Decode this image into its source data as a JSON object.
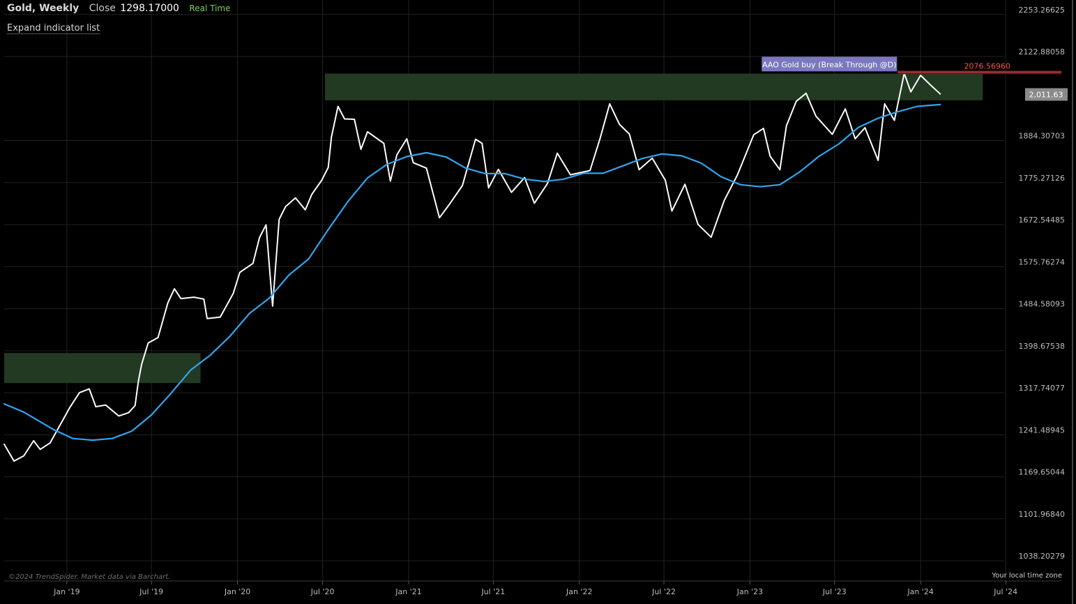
{
  "header": {
    "symbol": "Gold, Weekly",
    "close_label": "Close",
    "close_value": "1298.17000",
    "realtime_label": "Real Time"
  },
  "expand_label": "Expand indicator list",
  "copyright": "©2024 TrendSpider. Market data via Barchart.",
  "timezone_label": "Your local time zone",
  "colors": {
    "background": "#000000",
    "price_line": "#ffffff",
    "ma_line": "#2fa6f0",
    "zone_fill": "#233a22",
    "alert_label_bg": "#7b78c0",
    "alert_line": "#c43a3a",
    "alert_text": "#ff4d4d",
    "last_price_bg": "#8a8a8a",
    "grid": "#222222",
    "axis_text": "#bdbdbd"
  },
  "chart_data": {
    "type": "line",
    "title": "Gold, Weekly",
    "x_tick_labels": [
      "Jan '19",
      "Jul '19",
      "Jan '20",
      "Jul '20",
      "Jan '21",
      "Jul '21",
      "Jan '22",
      "Jul '22",
      "Jan '23",
      "Jul '23",
      "Jan '24",
      "Jul '24"
    ],
    "x_ticks": [
      "2019-01-01",
      "2019-07-01",
      "2020-01-01",
      "2020-07-01",
      "2021-01-01",
      "2021-07-01",
      "2022-01-01",
      "2022-07-01",
      "2023-01-01",
      "2023-07-01",
      "2024-01-01",
      "2024-07-01"
    ],
    "x_range": [
      "2018-08-20",
      "2024-10-28"
    ],
    "y_tick_labels": [
      "2253.26625",
      "2122.88058",
      "1884.30703",
      "1775.27126",
      "1672.54485",
      "1575.76274",
      "1484.58093",
      "1398.67538",
      "1317.74077",
      "1241.48945",
      "1169.65044",
      "1101.96840",
      "1038.20279"
    ],
    "y_scale": "log",
    "y_range": [
      1010,
      2300
    ],
    "grid": true,
    "series": [
      {
        "kind": "price",
        "values": [
          [
            "2018-08-20",
            1225
          ],
          [
            "2018-09-10",
            1196
          ],
          [
            "2018-10-01",
            1205
          ],
          [
            "2018-10-22",
            1231
          ],
          [
            "2018-11-05",
            1216
          ],
          [
            "2018-11-26",
            1227
          ],
          [
            "2018-12-17",
            1258
          ],
          [
            "2019-01-07",
            1290
          ],
          [
            "2019-01-28",
            1318
          ],
          [
            "2019-02-18",
            1325
          ],
          [
            "2019-03-04",
            1292
          ],
          [
            "2019-03-25",
            1295
          ],
          [
            "2019-04-22",
            1275
          ],
          [
            "2019-05-13",
            1281
          ],
          [
            "2019-05-27",
            1294
          ],
          [
            "2019-06-03",
            1339
          ],
          [
            "2019-06-10",
            1372
          ],
          [
            "2019-06-24",
            1414
          ],
          [
            "2019-07-15",
            1425
          ],
          [
            "2019-08-05",
            1497
          ],
          [
            "2019-08-19",
            1527
          ],
          [
            "2019-09-02",
            1506
          ],
          [
            "2019-09-30",
            1509
          ],
          [
            "2019-10-21",
            1505
          ],
          [
            "2019-10-28",
            1464
          ],
          [
            "2019-11-25",
            1467
          ],
          [
            "2019-12-23",
            1517
          ],
          [
            "2020-01-06",
            1563
          ],
          [
            "2020-02-03",
            1583
          ],
          [
            "2020-02-17",
            1642
          ],
          [
            "2020-03-02",
            1672
          ],
          [
            "2020-03-16",
            1490
          ],
          [
            "2020-03-30",
            1685
          ],
          [
            "2020-04-13",
            1716
          ],
          [
            "2020-05-04",
            1737
          ],
          [
            "2020-05-25",
            1708
          ],
          [
            "2020-06-08",
            1746
          ],
          [
            "2020-06-29",
            1781
          ],
          [
            "2020-07-13",
            1814
          ],
          [
            "2020-07-20",
            1894
          ],
          [
            "2020-08-03",
            1978
          ],
          [
            "2020-08-17",
            1943
          ],
          [
            "2020-09-07",
            1942
          ],
          [
            "2020-09-21",
            1861
          ],
          [
            "2020-10-05",
            1908
          ],
          [
            "2020-11-09",
            1877
          ],
          [
            "2020-11-23",
            1779
          ],
          [
            "2020-12-07",
            1847
          ],
          [
            "2020-12-28",
            1889
          ],
          [
            "2021-01-11",
            1826
          ],
          [
            "2021-02-08",
            1812
          ],
          [
            "2021-03-08",
            1689
          ],
          [
            "2021-03-29",
            1721
          ],
          [
            "2021-04-26",
            1768
          ],
          [
            "2021-05-24",
            1888
          ],
          [
            "2021-06-07",
            1877
          ],
          [
            "2021-06-21",
            1762
          ],
          [
            "2021-07-12",
            1809
          ],
          [
            "2021-08-09",
            1751
          ],
          [
            "2021-09-06",
            1788
          ],
          [
            "2021-09-27",
            1724
          ],
          [
            "2021-10-25",
            1773
          ],
          [
            "2021-11-15",
            1851
          ],
          [
            "2021-12-13",
            1795
          ],
          [
            "2022-01-24",
            1806
          ],
          [
            "2022-02-14",
            1888
          ],
          [
            "2022-03-07",
            1985
          ],
          [
            "2022-03-28",
            1928
          ],
          [
            "2022-04-18",
            1902
          ],
          [
            "2022-05-09",
            1808
          ],
          [
            "2022-06-06",
            1838
          ],
          [
            "2022-07-04",
            1781
          ],
          [
            "2022-07-18",
            1705
          ],
          [
            "2022-08-15",
            1771
          ],
          [
            "2022-09-12",
            1673
          ],
          [
            "2022-10-10",
            1643
          ],
          [
            "2022-11-07",
            1731
          ],
          [
            "2022-12-05",
            1794
          ],
          [
            "2023-01-09",
            1900
          ],
          [
            "2023-01-30",
            1917
          ],
          [
            "2023-02-13",
            1843
          ],
          [
            "2023-03-06",
            1808
          ],
          [
            "2023-03-20",
            1924
          ],
          [
            "2023-04-10",
            1992
          ],
          [
            "2023-05-01",
            2015
          ],
          [
            "2023-05-22",
            1951
          ],
          [
            "2023-06-26",
            1901
          ],
          [
            "2023-07-24",
            1971
          ],
          [
            "2023-08-14",
            1889
          ],
          [
            "2023-09-04",
            1919
          ],
          [
            "2023-10-02",
            1832
          ],
          [
            "2023-10-16",
            1985
          ],
          [
            "2023-11-06",
            1939
          ],
          [
            "2023-11-27",
            2073
          ],
          [
            "2023-12-11",
            2019
          ],
          [
            "2024-01-01",
            2067
          ],
          [
            "2024-01-22",
            2039
          ],
          [
            "2024-02-12",
            2013
          ]
        ]
      },
      {
        "kind": "moving_average",
        "values": [
          [
            "2018-08-20",
            1297
          ],
          [
            "2018-10-01",
            1282
          ],
          [
            "2018-12-03",
            1251
          ],
          [
            "2019-01-14",
            1235
          ],
          [
            "2019-02-25",
            1232
          ],
          [
            "2019-04-08",
            1235
          ],
          [
            "2019-05-20",
            1248
          ],
          [
            "2019-07-01",
            1277
          ],
          [
            "2019-08-12",
            1317
          ],
          [
            "2019-09-23",
            1361
          ],
          [
            "2019-11-04",
            1390
          ],
          [
            "2019-12-16",
            1428
          ],
          [
            "2020-01-27",
            1475
          ],
          [
            "2020-03-09",
            1507
          ],
          [
            "2020-04-20",
            1557
          ],
          [
            "2020-06-01",
            1593
          ],
          [
            "2020-07-13",
            1661
          ],
          [
            "2020-08-24",
            1728
          ],
          [
            "2020-10-05",
            1787
          ],
          [
            "2020-11-16",
            1822
          ],
          [
            "2020-12-28",
            1842
          ],
          [
            "2021-02-08",
            1852
          ],
          [
            "2021-03-22",
            1841
          ],
          [
            "2021-05-03",
            1812
          ],
          [
            "2021-06-14",
            1798
          ],
          [
            "2021-07-26",
            1798
          ],
          [
            "2021-09-06",
            1784
          ],
          [
            "2021-10-18",
            1778
          ],
          [
            "2021-11-29",
            1784
          ],
          [
            "2022-01-10",
            1799
          ],
          [
            "2022-02-21",
            1799
          ],
          [
            "2022-04-04",
            1818
          ],
          [
            "2022-05-16",
            1837
          ],
          [
            "2022-06-27",
            1849
          ],
          [
            "2022-08-08",
            1844
          ],
          [
            "2022-09-19",
            1825
          ],
          [
            "2022-10-31",
            1790
          ],
          [
            "2022-12-12",
            1770
          ],
          [
            "2023-01-23",
            1765
          ],
          [
            "2023-03-06",
            1770
          ],
          [
            "2023-04-17",
            1802
          ],
          [
            "2023-05-29",
            1843
          ],
          [
            "2023-07-10",
            1875
          ],
          [
            "2023-08-21",
            1920
          ],
          [
            "2023-10-02",
            1945
          ],
          [
            "2023-11-13",
            1963
          ],
          [
            "2023-12-25",
            1978
          ],
          [
            "2024-02-12",
            1983
          ]
        ]
      }
    ],
    "zones": [
      {
        "from": "2018-08-20",
        "to": "2019-10-14",
        "low": 1336,
        "high": 1394
      },
      {
        "from": "2020-07-06",
        "to": "2024-05-13",
        "low": 1995,
        "high": 2072
      }
    ],
    "alert": {
      "label": "AAO Gold buy (Break Through @D)",
      "level": 2076.5696,
      "level_label": "2076.56960",
      "from": "2023-11-13",
      "to": "2024-10-28"
    },
    "last_price": "2,011.63",
    "last_value": 2011.63
  }
}
